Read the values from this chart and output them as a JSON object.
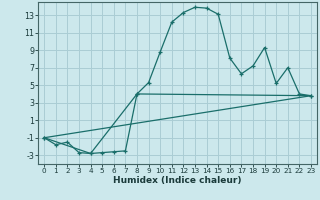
{
  "xlabel": "Humidex (Indice chaleur)",
  "background_color": "#cce8ec",
  "grid_color": "#aacdd4",
  "line_color": "#1a6e6a",
  "xlim": [
    -0.5,
    23.5
  ],
  "ylim": [
    -4.0,
    14.5
  ],
  "xticks": [
    0,
    1,
    2,
    3,
    4,
    5,
    6,
    7,
    8,
    9,
    10,
    11,
    12,
    13,
    14,
    15,
    16,
    17,
    18,
    19,
    20,
    21,
    22,
    23
  ],
  "yticks": [
    -3,
    -1,
    1,
    3,
    5,
    7,
    9,
    11,
    13
  ],
  "series1_x": [
    0,
    1,
    2,
    3,
    4,
    5,
    6,
    7,
    8,
    9,
    10,
    11,
    12,
    13,
    14,
    15,
    16,
    17,
    18,
    19,
    20,
    21,
    22,
    23
  ],
  "series1_y": [
    -1.0,
    -1.8,
    -1.5,
    -2.7,
    -2.8,
    -2.7,
    -2.6,
    -2.5,
    4.0,
    5.3,
    8.8,
    12.2,
    13.3,
    13.9,
    13.8,
    13.1,
    8.1,
    6.3,
    7.2,
    9.3,
    5.2,
    7.0,
    4.0,
    3.8
  ],
  "series2_x": [
    0,
    23
  ],
  "series2_y": [
    -1.0,
    3.8
  ],
  "series3_x": [
    0,
    4,
    8,
    23
  ],
  "series3_y": [
    -1.0,
    -2.8,
    4.0,
    3.8
  ]
}
